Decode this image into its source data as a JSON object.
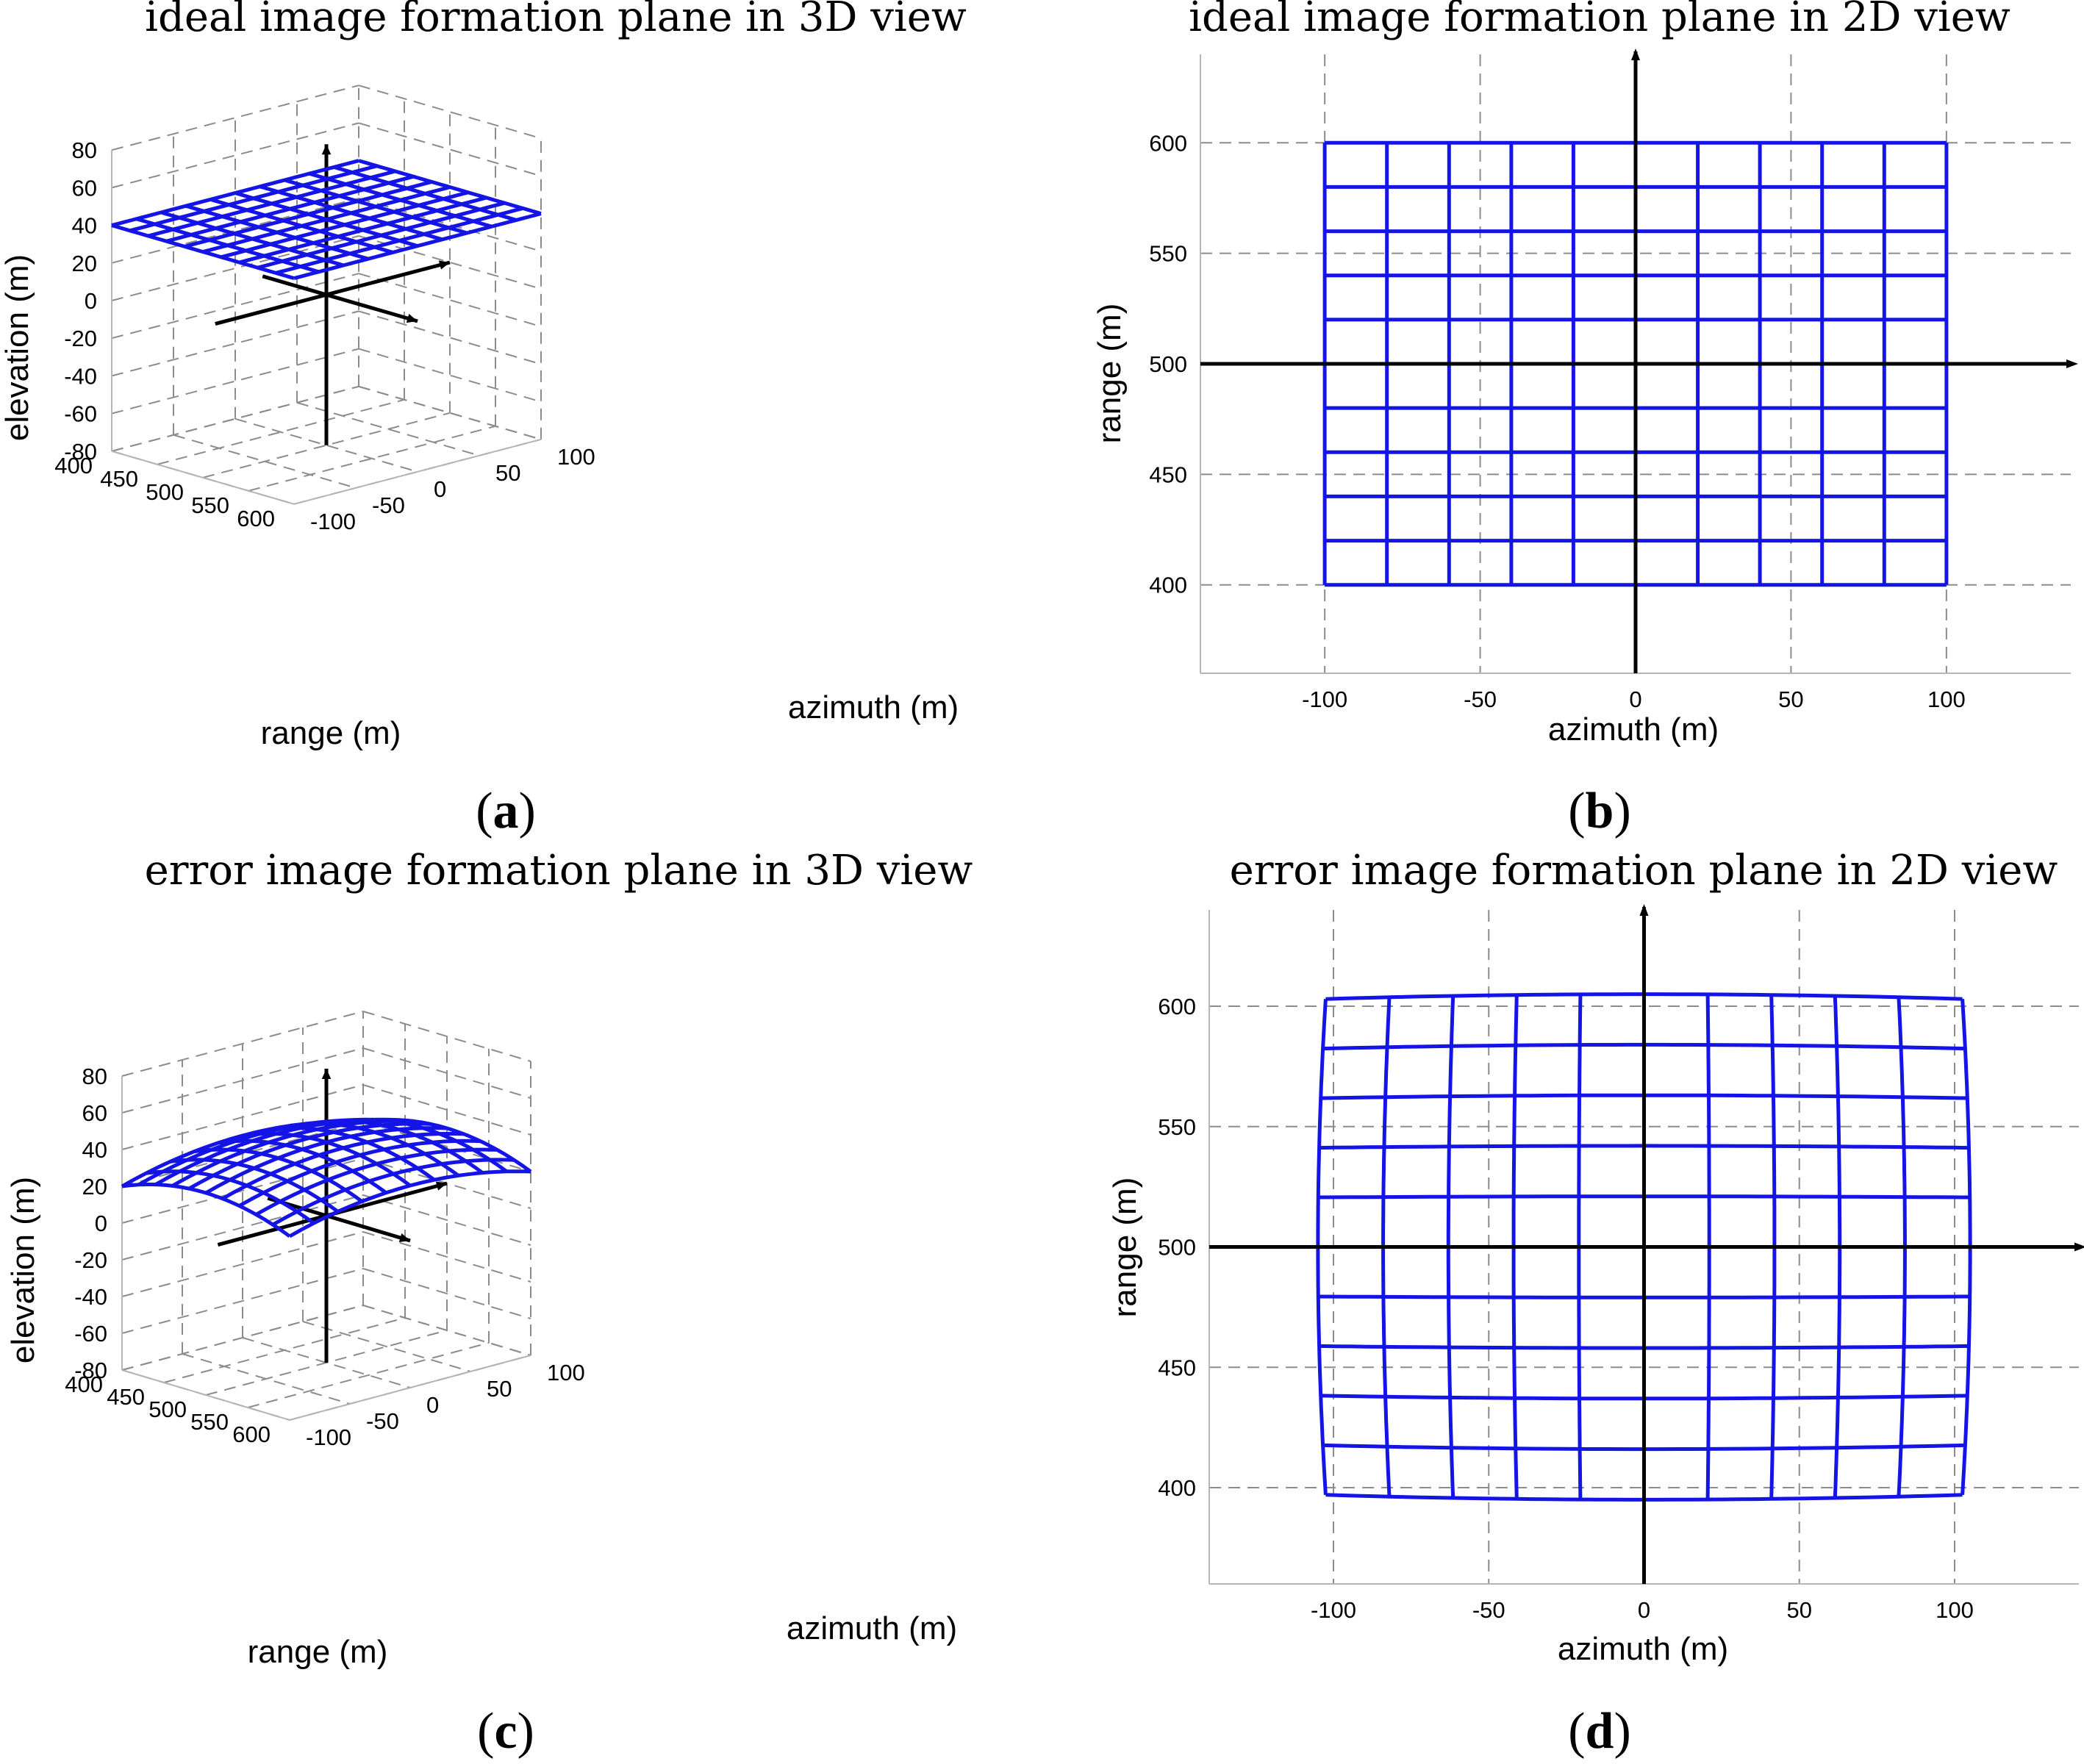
{
  "colors": {
    "mesh": "#1414e6",
    "axes": "#000000",
    "grid": "#8c8c8c"
  },
  "chart_data": [
    {
      "id": "a",
      "panel_label": "a",
      "type": "surface3d",
      "title": "ideal image formation plane in 3D view",
      "xlabel": "range (m)",
      "ylabel": "azimuth (m)",
      "zlabel": "elevation (m)",
      "range_ticks": [
        "400",
        "450",
        "500",
        "550",
        "600"
      ],
      "azimuth_ticks": [
        "-100",
        "-50",
        "0",
        "50",
        "100"
      ],
      "elevation_ticks": [
        "-80",
        "-60",
        "-40",
        "-20",
        "0",
        "20",
        "40",
        "60",
        "80"
      ],
      "xlim": [
        400,
        600
      ],
      "ylim": [
        -100,
        100
      ],
      "zlim": [
        -80,
        80
      ],
      "surface": {
        "grid": 10,
        "height_center": 40,
        "height_corner": 40
      }
    },
    {
      "id": "b",
      "panel_label": "b",
      "type": "mesh2d",
      "title": "ideal image formation plane in 2D view",
      "xlabel": "azimuth (m)",
      "ylabel": "range (m)",
      "x_ticks": [
        "-100",
        "-50",
        "0",
        "50",
        "100"
      ],
      "y_ticks": [
        "400",
        "450",
        "500",
        "550",
        "600"
      ],
      "xlim": [
        -140,
        140
      ],
      "ylim": [
        360,
        640
      ],
      "mesh": {
        "grid": 10,
        "x_range": [
          -100,
          100
        ],
        "y_range": [
          400,
          600
        ],
        "distortion": 0
      }
    },
    {
      "id": "c",
      "panel_label": "c",
      "type": "surface3d",
      "title": "error image formation plane in 3D view",
      "xlabel": "range (m)",
      "ylabel": "azimuth (m)",
      "zlabel": "elevation (m)",
      "range_ticks": [
        "400",
        "450",
        "500",
        "550",
        "600"
      ],
      "azimuth_ticks": [
        "-100",
        "-50",
        "0",
        "50",
        "100"
      ],
      "elevation_ticks": [
        "-80",
        "-60",
        "-40",
        "-20",
        "0",
        "20",
        "40",
        "60",
        "80"
      ],
      "xlim": [
        400,
        600
      ],
      "ylim": [
        -100,
        100
      ],
      "zlim": [
        -80,
        80
      ],
      "surface": {
        "grid": 10,
        "height_center": 40,
        "height_corner": 20
      }
    },
    {
      "id": "d",
      "panel_label": "d",
      "type": "mesh2d",
      "title": "error image formation plane in 2D view",
      "xlabel": "azimuth (m)",
      "ylabel": "range (m)",
      "x_ticks": [
        "-100",
        "-50",
        "0",
        "50",
        "100"
      ],
      "y_ticks": [
        "400",
        "450",
        "500",
        "550",
        "600"
      ],
      "xlim": [
        -140,
        140
      ],
      "ylim": [
        360,
        640
      ],
      "mesh": {
        "grid": 10,
        "x_range": [
          -100,
          100
        ],
        "y_range": [
          400,
          600
        ],
        "distortion": 5
      }
    }
  ]
}
